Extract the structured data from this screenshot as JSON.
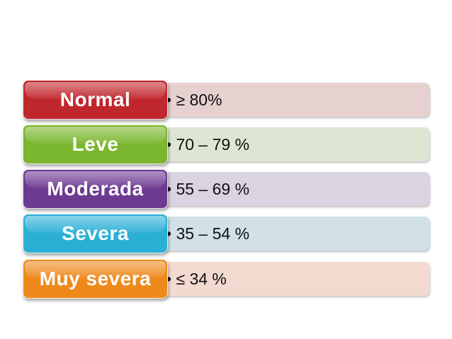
{
  "items": [
    {
      "label": "Normal",
      "value": "• ≥ 80%",
      "box_color": "#c0272d",
      "bar_color": "#e6d0d0"
    },
    {
      "label": "Leve",
      "value": "• 70 – 79 %",
      "box_color": "#7ab62e",
      "bar_color": "#dde6d3"
    },
    {
      "label": "Moderada",
      "value": "• 55 – 69 %",
      "box_color": "#6d3a91",
      "bar_color": "#dad3e1"
    },
    {
      "label": "Severa",
      "value": "• 35 – 54 %",
      "box_color": "#2bb0d5",
      "bar_color": "#d1e1e7"
    },
    {
      "label": "Muy severa",
      "value": "• ≤ 34 %",
      "box_color": "#ee8a1c",
      "bar_color": "#f3dad0"
    }
  ]
}
